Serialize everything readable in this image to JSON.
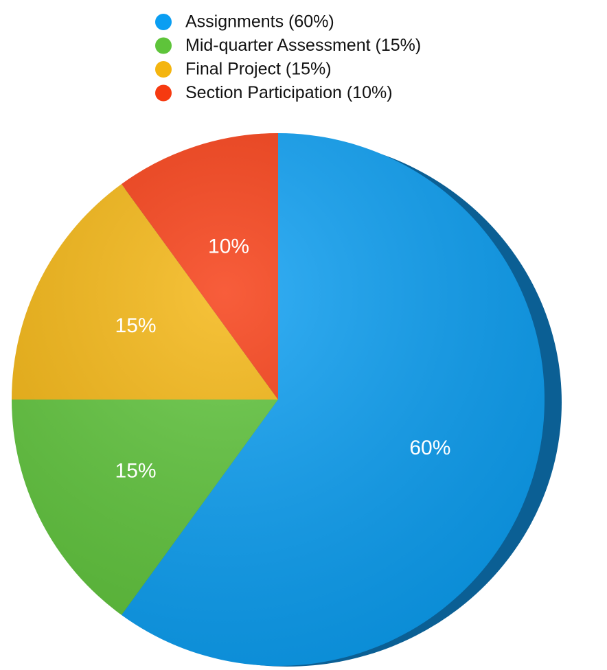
{
  "chart_data": {
    "type": "pie",
    "categories": [
      "Assignments (60%)",
      "Mid-quarter Assessment (15%)",
      "Final Project (15%)",
      "Section Participation (10%)"
    ],
    "values": [
      60,
      15,
      15,
      10
    ],
    "value_labels": [
      "60%",
      "15%",
      "15%",
      "10%"
    ],
    "colors": [
      "#0a9ef2",
      "#5ec43a",
      "#f4b50f",
      "#f63a10"
    ],
    "legend": "top"
  }
}
